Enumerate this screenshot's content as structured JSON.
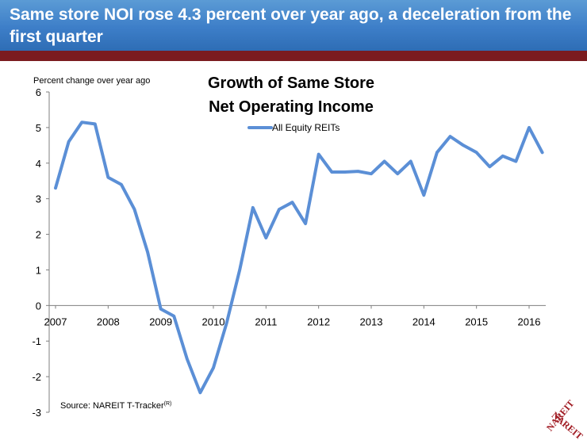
{
  "header": {
    "title": "Same store NOI rose 4.3 percent over year ago, a deceleration from the first quarter"
  },
  "colors": {
    "header_blue": "#3d7ec8",
    "accent_bar": "#7b1b1f",
    "series_line": "#5b8fd6"
  },
  "chart_data": {
    "type": "line",
    "title_lines": [
      "Growth of Same Store",
      "Net Operating Income"
    ],
    "ylabel": "Percent change over year ago",
    "xlabel": "",
    "ylim": [
      -3,
      6
    ],
    "yticks": [
      "6",
      "5",
      "4",
      "3",
      "2",
      "1",
      "0",
      "-1",
      "-2",
      "-3"
    ],
    "xticks": [
      "2007",
      "2008",
      "2009",
      "2010",
      "2011",
      "2012",
      "2013",
      "2014",
      "2015",
      "2016"
    ],
    "grid": false,
    "legend_position": "top-center",
    "source": "Source: NAREIT T-Tracker",
    "source_sup": "(R)",
    "series": [
      {
        "name": "All Equity REITs",
        "x": [
          "2007 Q1",
          "2007 Q2",
          "2007 Q3",
          "2007 Q4",
          "2008 Q1",
          "2008 Q2",
          "2008 Q3",
          "2008 Q4",
          "2009 Q1",
          "2009 Q2",
          "2009 Q3",
          "2009 Q4",
          "2010 Q1",
          "2010 Q2",
          "2010 Q3",
          "2010 Q4",
          "2011 Q1",
          "2011 Q2",
          "2011 Q3",
          "2011 Q4",
          "2012 Q1",
          "2012 Q2",
          "2012 Q3",
          "2012 Q4",
          "2013 Q1",
          "2013 Q2",
          "2013 Q3",
          "2013 Q4",
          "2014 Q1",
          "2014 Q2",
          "2014 Q3",
          "2014 Q4",
          "2015 Q1",
          "2015 Q2",
          "2015 Q3",
          "2015 Q4",
          "2016 Q1",
          "2016 Q2"
        ],
        "values": [
          3.3,
          4.6,
          5.15,
          5.1,
          3.6,
          3.4,
          2.7,
          1.5,
          -0.1,
          -0.3,
          -1.5,
          -2.45,
          -1.75,
          -0.5,
          1.0,
          2.75,
          1.9,
          2.7,
          2.9,
          2.3,
          4.25,
          3.75,
          3.75,
          3.77,
          3.7,
          4.05,
          3.7,
          4.05,
          3.1,
          4.3,
          4.75,
          4.5,
          4.3,
          3.9,
          4.2,
          4.05,
          5.0,
          4.3
        ]
      }
    ]
  },
  "logo": {
    "text": "NAREIT"
  }
}
